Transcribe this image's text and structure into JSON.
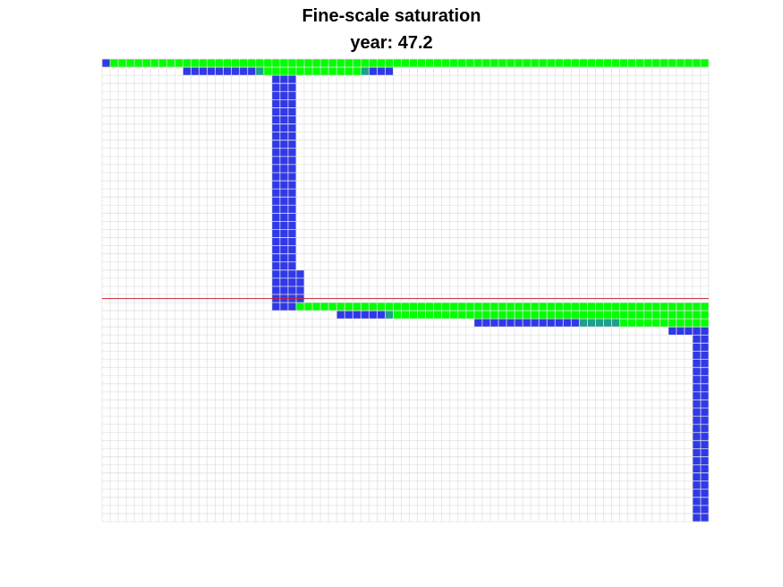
{
  "figure": {
    "title": "Fine-scale saturation",
    "subtitle": "year: 47.2"
  },
  "chart_data": {
    "type": "heatmap",
    "title": "Fine-scale saturation",
    "subtitle": "year: 47.2",
    "grid": true,
    "xlim": [
      0,
      75
    ],
    "ylim": [
      0,
      57
    ],
    "y_direction": "top-down",
    "colors": {
      "grid": "#e2e2e2",
      "empty": "#ffffff",
      "saturated": "#00ff00",
      "low": "#3039e6",
      "transition": "#1fa08a",
      "interface": "#cc2233"
    },
    "interface_line": {
      "y": 29.5,
      "x0": 0,
      "x1": 75
    },
    "regions": [
      {
        "x0": 0,
        "x1": 1,
        "y0": 0,
        "y1": 1,
        "state": "low"
      },
      {
        "x0": 1,
        "x1": 75,
        "y0": 0,
        "y1": 1,
        "state": "saturated"
      },
      {
        "x0": 10,
        "x1": 19,
        "y0": 1,
        "y1": 2,
        "state": "low"
      },
      {
        "x0": 19,
        "x1": 20,
        "y0": 1,
        "y1": 2,
        "state": "transition"
      },
      {
        "x0": 20,
        "x1": 32,
        "y0": 1,
        "y1": 2,
        "state": "saturated"
      },
      {
        "x0": 32,
        "x1": 33,
        "y0": 1,
        "y1": 2,
        "state": "transition"
      },
      {
        "x0": 33,
        "x1": 36,
        "y0": 1,
        "y1": 2,
        "state": "low"
      },
      {
        "x0": 21,
        "x1": 24,
        "y0": 2,
        "y1": 26,
        "state": "low"
      },
      {
        "x0": 21,
        "x1": 25,
        "y0": 26,
        "y1": 30,
        "state": "low"
      },
      {
        "x0": 21,
        "x1": 24,
        "y0": 30,
        "y1": 31,
        "state": "low"
      },
      {
        "x0": 24,
        "x1": 75,
        "y0": 30,
        "y1": 31,
        "state": "saturated"
      },
      {
        "x0": 29,
        "x1": 35,
        "y0": 31,
        "y1": 32,
        "state": "low"
      },
      {
        "x0": 35,
        "x1": 36,
        "y0": 31,
        "y1": 32,
        "state": "transition"
      },
      {
        "x0": 36,
        "x1": 75,
        "y0": 31,
        "y1": 32,
        "state": "saturated"
      },
      {
        "x0": 46,
        "x1": 59,
        "y0": 32,
        "y1": 33,
        "state": "low"
      },
      {
        "x0": 59,
        "x1": 64,
        "y0": 32,
        "y1": 33,
        "state": "transition"
      },
      {
        "x0": 64,
        "x1": 75,
        "y0": 32,
        "y1": 33,
        "state": "saturated"
      },
      {
        "x0": 70,
        "x1": 73,
        "y0": 33,
        "y1": 34,
        "state": "low"
      },
      {
        "x0": 73,
        "x1": 75,
        "y0": 33,
        "y1": 57,
        "state": "low"
      }
    ]
  }
}
